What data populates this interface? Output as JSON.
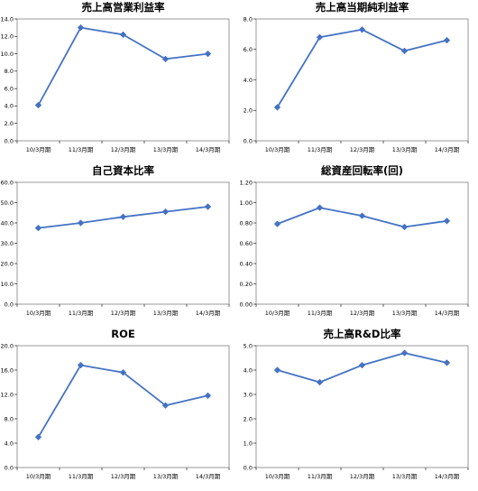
{
  "colors": {
    "series": "#4472C4",
    "plot_border": "#808080",
    "axis": "#000000"
  },
  "chart_data": [
    {
      "type": "line",
      "title": "売上高営業利益率",
      "categories": [
        "10/3月期",
        "11/3月期",
        "12/3月期",
        "13/3月期",
        "14/3月期"
      ],
      "values": [
        4.1,
        13.0,
        12.2,
        9.4,
        10.0
      ],
      "ylim": [
        0,
        14
      ],
      "yticks": [
        "0.0",
        "2.0",
        "4.0",
        "6.0",
        "8.0",
        "10.0",
        "12.0",
        "14.0"
      ],
      "grid": false,
      "legend": "none"
    },
    {
      "type": "line",
      "title": "売上高当期純利益率",
      "categories": [
        "10/3月期",
        "11/3月期",
        "12/3月期",
        "13/3月期",
        "14/3月期"
      ],
      "values": [
        2.2,
        6.8,
        7.3,
        5.9,
        6.6
      ],
      "ylim": [
        0,
        8
      ],
      "yticks": [
        "0.0",
        "2.0",
        "4.0",
        "6.0",
        "8.0"
      ],
      "grid": false,
      "legend": "none"
    },
    {
      "type": "line",
      "title": "自己資本比率",
      "categories": [
        "10/3月期",
        "11/3月期",
        "12/3月期",
        "13/3月期",
        "14/3月期"
      ],
      "values": [
        37.5,
        40.0,
        43.0,
        45.5,
        48.0
      ],
      "ylim": [
        0,
        60
      ],
      "yticks": [
        "0.0",
        "10.0",
        "20.0",
        "30.0",
        "40.0",
        "50.0",
        "60.0"
      ],
      "grid": false,
      "legend": "none"
    },
    {
      "type": "line",
      "title": "総資産回転率(回)",
      "categories": [
        "10/3月期",
        "11/3月期",
        "12/3月期",
        "13/3月期",
        "14/3月期"
      ],
      "values": [
        0.79,
        0.95,
        0.87,
        0.76,
        0.82
      ],
      "ylim": [
        0,
        1.2
      ],
      "yticks": [
        "0.00",
        "0.20",
        "0.40",
        "0.60",
        "0.80",
        "1.00",
        "1.20"
      ],
      "grid": false,
      "legend": "none"
    },
    {
      "type": "line",
      "title": "ROE",
      "categories": [
        "10/3月期",
        "11/3月期",
        "12/3月期",
        "13/3月期",
        "14/3月期"
      ],
      "values": [
        5.0,
        16.8,
        15.6,
        10.2,
        11.8
      ],
      "ylim": [
        0,
        20
      ],
      "yticks": [
        "0.0",
        "4.0",
        "8.0",
        "12.0",
        "16.0",
        "20.0"
      ],
      "grid": false,
      "legend": "none"
    },
    {
      "type": "line",
      "title": "売上高R&D比率",
      "categories": [
        "10/3月期",
        "11/3月期",
        "12/3月期",
        "13/3月期",
        "14/3月期"
      ],
      "values": [
        4.0,
        3.5,
        4.2,
        4.7,
        4.3
      ],
      "ylim": [
        0,
        5
      ],
      "yticks": [
        "0.0",
        "1.0",
        "2.0",
        "3.0",
        "4.0",
        "5.0"
      ],
      "grid": false,
      "legend": "none"
    }
  ]
}
